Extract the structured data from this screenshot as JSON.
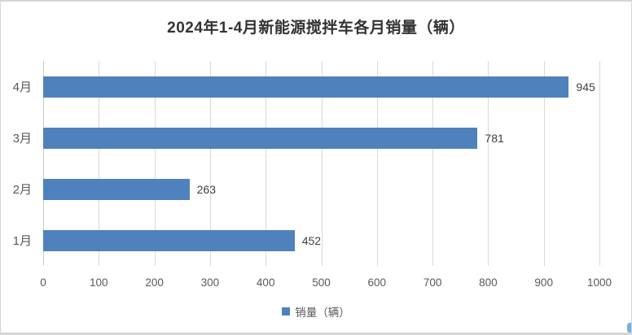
{
  "chart_data": {
    "type": "bar",
    "orientation": "horizontal",
    "title": "2024年1-4月新能源搅拌车各月销量（辆）",
    "categories": [
      "4月",
      "3月",
      "2月",
      "1月"
    ],
    "values": [
      945,
      781,
      263,
      452
    ],
    "data_labels": [
      "945",
      "781",
      "263",
      "452"
    ],
    "xlim": [
      0,
      1000
    ],
    "x_ticks": [
      0,
      100,
      200,
      300,
      400,
      500,
      600,
      700,
      800,
      900,
      1000
    ],
    "grid": true,
    "legend": {
      "label": "销量（辆）",
      "position": "bottom"
    },
    "colors": {
      "bar": "#4f81bd",
      "gridline": "#d9d9d9",
      "axis_line": "#c9c9c9",
      "tick_text": "#595959",
      "data_label_text": "#404040",
      "title_text": "#333333"
    }
  }
}
